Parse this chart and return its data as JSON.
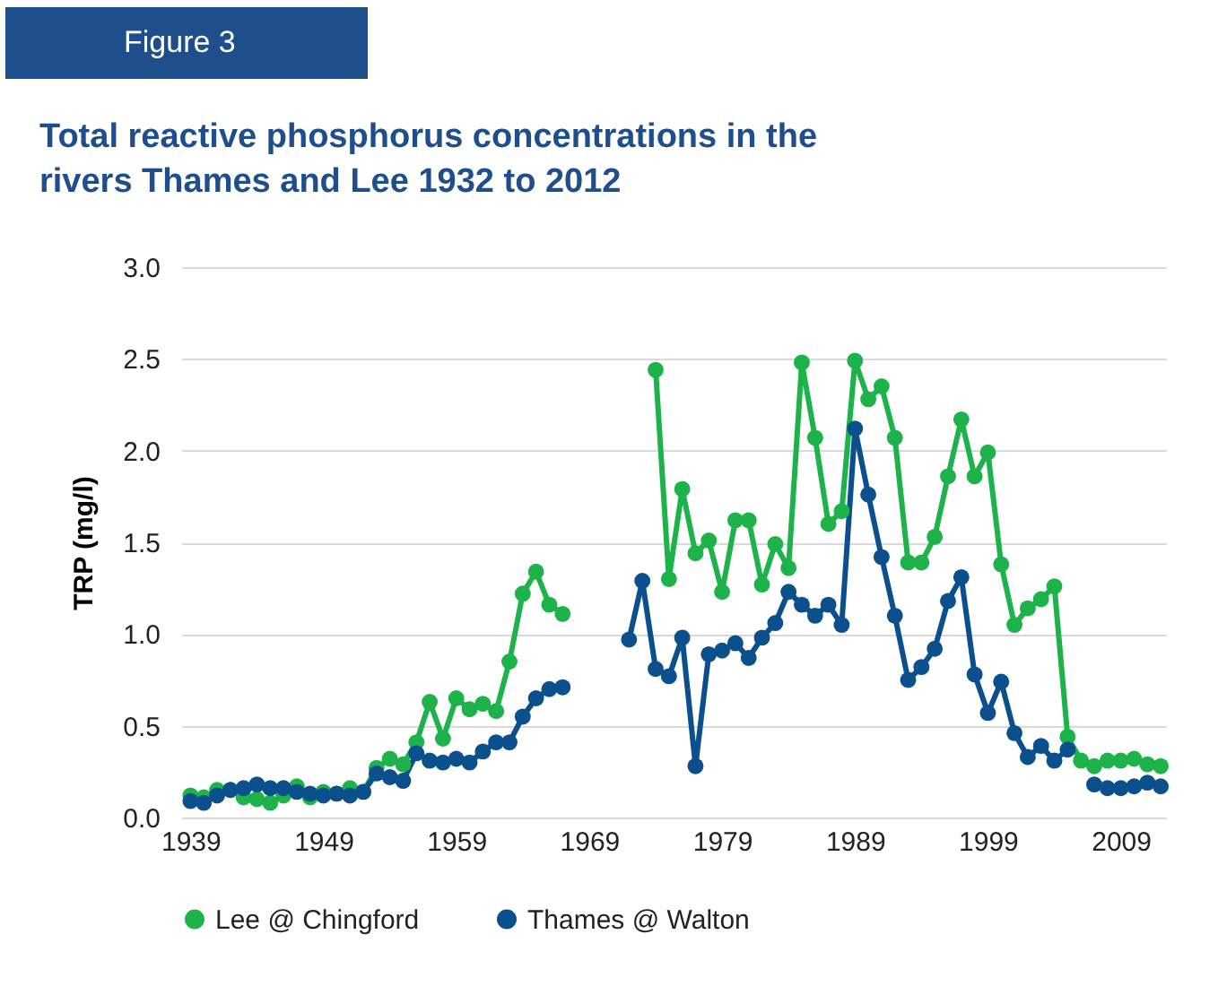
{
  "chart_data": {
    "type": "line",
    "title": "Total reactive phosphorus concentrations in the\nrivers Thames and Lee 1932 to 2012",
    "ylabel": "TRP (mg/l)",
    "annotations": [
      "Figure 3"
    ],
    "x": [
      1939,
      1940,
      1941,
      1942,
      1943,
      1944,
      1945,
      1946,
      1947,
      1948,
      1949,
      1950,
      1951,
      1952,
      1953,
      1954,
      1955,
      1956,
      1957,
      1958,
      1959,
      1960,
      1961,
      1962,
      1963,
      1964,
      1965,
      1966,
      1967,
      1968,
      1969,
      1970,
      1971,
      1972,
      1973,
      1974,
      1975,
      1976,
      1977,
      1978,
      1979,
      1980,
      1981,
      1982,
      1983,
      1984,
      1985,
      1986,
      1987,
      1988,
      1989,
      1990,
      1991,
      1992,
      1993,
      1994,
      1995,
      1996,
      1997,
      1998,
      1999,
      2000,
      2001,
      2002,
      2003,
      2004,
      2005,
      2006,
      2007,
      2008,
      2009,
      2010,
      2011,
      2012
    ],
    "series": [
      {
        "name": "Lee @ Chingford",
        "color": "#1db34a",
        "values": [
          0.12,
          0.11,
          0.15,
          0.15,
          0.11,
          0.1,
          0.08,
          0.12,
          0.17,
          0.11,
          0.14,
          0.13,
          0.16,
          0.14,
          0.27,
          0.32,
          0.29,
          0.41,
          0.63,
          0.43,
          0.65,
          0.59,
          0.62,
          0.58,
          0.85,
          1.22,
          1.34,
          1.16,
          1.11,
          null,
          null,
          null,
          null,
          null,
          null,
          2.44,
          1.3,
          1.79,
          1.44,
          1.51,
          1.23,
          1.62,
          1.62,
          1.27,
          1.49,
          1.36,
          2.48,
          2.07,
          1.6,
          1.67,
          2.49,
          2.28,
          2.35,
          2.07,
          1.39,
          1.39,
          1.53,
          1.86,
          2.17,
          1.86,
          1.99,
          1.38,
          1.05,
          1.14,
          1.19,
          1.26,
          0.44,
          0.31,
          0.28,
          0.31,
          0.31,
          0.32,
          0.29,
          0.28
        ]
      },
      {
        "name": "Thames @ Walton",
        "color": "#0b4f8c",
        "values": [
          0.09,
          0.08,
          0.12,
          0.15,
          0.16,
          0.18,
          0.16,
          0.16,
          0.14,
          0.13,
          0.12,
          0.13,
          0.12,
          0.14,
          0.24,
          0.22,
          0.2,
          0.35,
          0.31,
          0.3,
          0.32,
          0.3,
          0.36,
          0.41,
          0.41,
          0.55,
          0.65,
          0.7,
          0.71,
          null,
          null,
          null,
          null,
          0.97,
          1.29,
          0.81,
          0.77,
          0.98,
          0.28,
          0.89,
          0.91,
          0.95,
          0.87,
          0.98,
          1.06,
          1.23,
          1.16,
          1.1,
          1.16,
          1.05,
          2.12,
          1.76,
          1.42,
          1.1,
          0.75,
          0.82,
          0.92,
          1.18,
          1.31,
          0.78,
          0.57,
          0.74,
          0.46,
          0.33,
          0.39,
          0.31,
          0.37,
          null,
          0.18,
          0.16,
          0.16,
          0.17,
          0.19,
          0.17
        ]
      }
    ],
    "xlim": [
      1938.3,
      2012.4
    ],
    "xticks": [
      1939,
      1949,
      1959,
      1969,
      1979,
      1989,
      1999,
      2009
    ],
    "ylim": [
      0,
      3
    ],
    "yticks": [
      {
        "value": 0,
        "label": "0.0"
      },
      {
        "value": 0.5,
        "label": "0.5"
      },
      {
        "value": 1,
        "label": "1.0"
      },
      {
        "value": 1.5,
        "label": "1.5"
      },
      {
        "value": 2,
        "label": "2.0"
      },
      {
        "value": 2.5,
        "label": "2.5"
      },
      {
        "value": 3,
        "label": "3.0"
      }
    ],
    "grid": "y",
    "legend": "bottom",
    "marker": "circle",
    "line_style": "solid"
  }
}
